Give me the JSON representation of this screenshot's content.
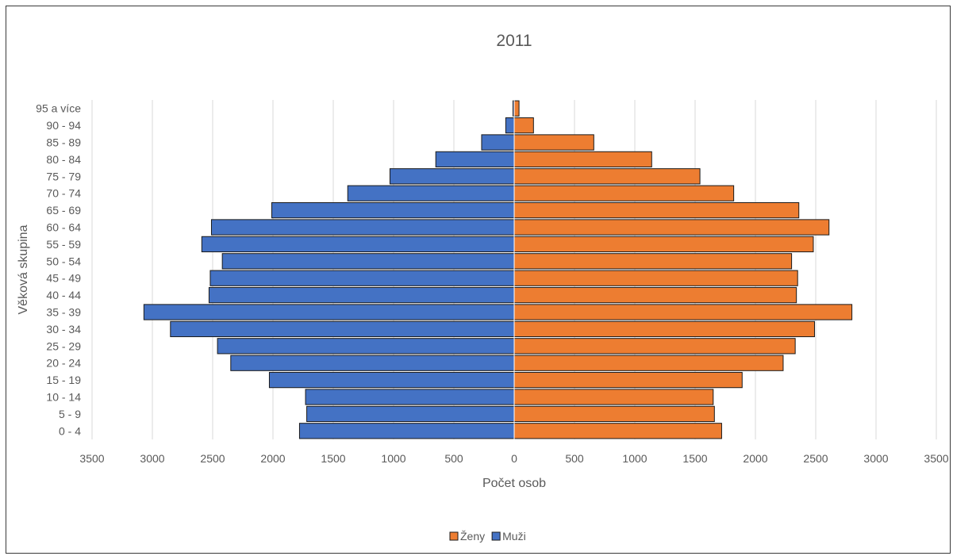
{
  "chart_data": {
    "type": "bar",
    "orientation": "horizontal",
    "subtype": "population-pyramid",
    "title": "2011",
    "xlabel": "Počet osob",
    "ylabel": "Věková skupina",
    "categories": [
      "0 - 4",
      "5 - 9",
      "10 - 14",
      "15 - 19",
      "20 - 24",
      "25 - 29",
      "30 - 34",
      "35 - 39",
      "40 - 44",
      "45 - 49",
      "50 - 54",
      "55 - 59",
      "60 - 64",
      "65 - 69",
      "70 - 74",
      "75 - 79",
      "80 - 84",
      "85 - 89",
      "90 - 94",
      "95 a více"
    ],
    "series": [
      {
        "name": "Ženy",
        "color": "#ed7d31",
        "side": "right",
        "values": [
          1720,
          1660,
          1650,
          1890,
          2230,
          2330,
          2490,
          2800,
          2340,
          2350,
          2300,
          2480,
          2610,
          2360,
          1820,
          1540,
          1140,
          660,
          160,
          40
        ]
      },
      {
        "name": "Muži",
        "color": "#4472c4",
        "side": "left",
        "values": [
          1780,
          1720,
          1730,
          2030,
          2350,
          2460,
          2850,
          3070,
          2530,
          2520,
          2420,
          2590,
          2510,
          2010,
          1380,
          1030,
          650,
          270,
          70,
          10
        ]
      }
    ],
    "x_ticks": [
      "3500",
      "3000",
      "2500",
      "2000",
      "1500",
      "1000",
      "500",
      "0",
      "500",
      "1000",
      "1500",
      "2000",
      "2500",
      "3000",
      "3500"
    ],
    "xlim": [
      -3500,
      3500
    ],
    "grid": true,
    "legend": {
      "position": "bottom",
      "entries": [
        "Ženy",
        "Muži"
      ]
    }
  }
}
